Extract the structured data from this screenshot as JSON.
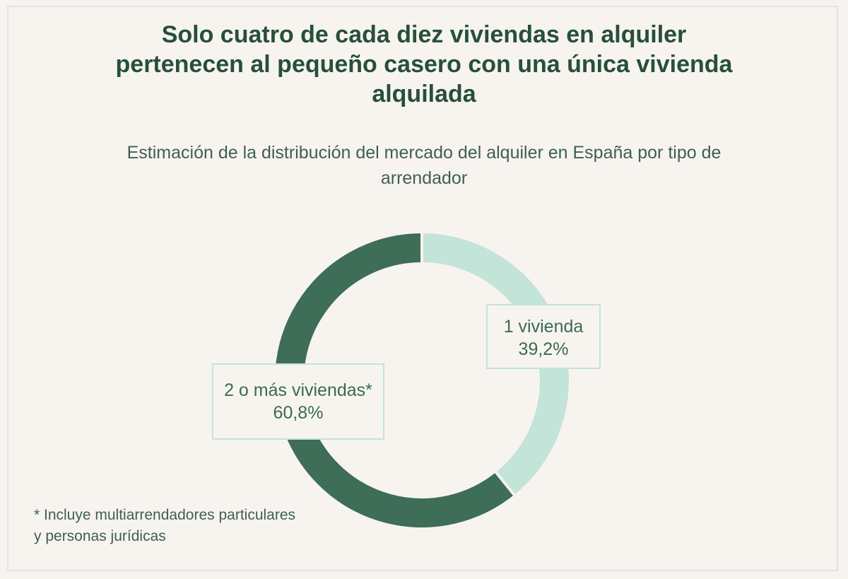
{
  "colors": {
    "background": "#f7f4ef",
    "single_home": "#c3e4d8",
    "multi_home": "#3e6d58",
    "text": "#274f3c"
  },
  "chart_data": {
    "type": "pie",
    "style": "donut",
    "title": "Solo cuatro de cada diez viviendas en alquiler pertenecen al pequeño casero con una única vivienda alquilada",
    "subtitle": "Estimación de la distribución del mercado del alquiler en España por tipo de arrendador",
    "slices": [
      {
        "label": "1 vivienda",
        "value": 39.2,
        "display": "39,2%",
        "color": "#c3e4d8"
      },
      {
        "label": "2 o más viviendas*",
        "value": 60.8,
        "display": "60,8%",
        "color": "#3e6d58"
      }
    ],
    "footnote": "* Incluye multiarrendadores particulares y personas jurídicas"
  }
}
